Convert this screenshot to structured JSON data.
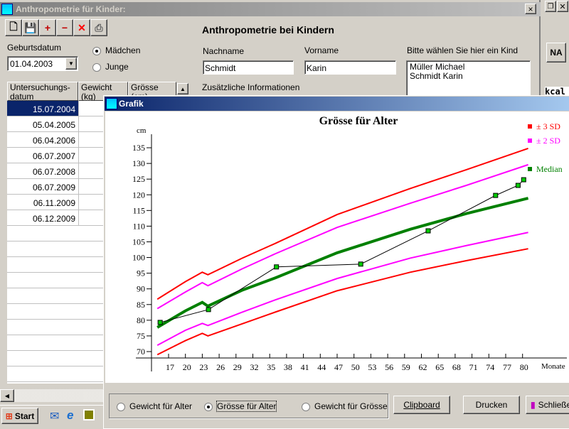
{
  "main_window": {
    "title": "Anthropometrie für Kinder:",
    "heading": "Anthropometrie bei Kindern",
    "close": "×",
    "toolbar": [
      {
        "icon": "new-icon",
        "glyph": "🗋"
      },
      {
        "icon": "save-icon",
        "glyph": "💾"
      },
      {
        "icon": "add-row-icon",
        "glyph": "+"
      },
      {
        "icon": "remove-row-icon",
        "glyph": "−"
      },
      {
        "icon": "delete-icon",
        "glyph": "✕"
      },
      {
        "icon": "print-icon",
        "glyph": "⎙"
      }
    ],
    "birthdate_label": "Geburtsdatum",
    "birthdate": "01.04.2003",
    "gender": {
      "options": [
        "Mädchen",
        "Junge"
      ],
      "selected": "Mädchen"
    },
    "lastname_label": "Nachname",
    "lastname": "Schmidt",
    "firstname_label": "Vorname",
    "firstname": "Karin",
    "info_label": "Zusätzliche Informationen",
    "child_list_label": "Bitte wählen Sie hier ein Kind",
    "children": [
      "Müller Michael",
      "Schmidt Karin"
    ],
    "table": {
      "headers": [
        "Untersuchungs-\ndatum",
        "Gewicht (kg)",
        "Grösse (cm)"
      ],
      "rows": [
        "15.07.2004",
        "05.04.2005",
        "06.04.2006",
        "06.07.2007",
        "06.07.2008",
        "06.07.2009",
        "06.11.2009",
        "06.12.2009"
      ],
      "selected": 0
    }
  },
  "back_window": {
    "na_button": "NA",
    "kcal": "kcal"
  },
  "taskbar": {
    "start": "Start"
  },
  "grafik_window": {
    "title": "Grafik",
    "options": [
      "Gewicht für Alter",
      "Grösse für Alter",
      "Gewicht für Grösse"
    ],
    "selected": "Grösse für Alter",
    "clipboard": "Clipboard",
    "print": "Drucken",
    "close": "Schließen"
  },
  "chart_data": {
    "type": "line",
    "title": "Grösse für Alter",
    "ylabel": "cm",
    "xlabel": "Monate",
    "xlim": [
      14,
      81
    ],
    "ylim": [
      68,
      138
    ],
    "xticks": [
      17,
      20,
      23,
      26,
      29,
      32,
      35,
      38,
      41,
      44,
      47,
      50,
      53,
      56,
      59,
      62,
      65,
      68,
      71,
      74,
      77,
      80
    ],
    "yticks": [
      70,
      75,
      80,
      85,
      90,
      95,
      100,
      105,
      110,
      115,
      120,
      125,
      130,
      135
    ],
    "legend": [
      {
        "name": "± 3 SD",
        "color": "#ff0000"
      },
      {
        "name": "± 2 SD",
        "color": "#ff00ff"
      },
      {
        "name": "Median",
        "color": "#008000"
      }
    ],
    "legend_position": "top-right",
    "curves": [
      {
        "name": "+3 SD",
        "color": "#ff0000",
        "x": [
          15,
          20,
          23,
          24,
          30,
          36,
          47,
          60,
          70,
          81
        ],
        "y": [
          86.7,
          92.3,
          95.3,
          94.5,
          99.7,
          104.5,
          113.7,
          122,
          128,
          134.8
        ]
      },
      {
        "name": "+2 SD",
        "color": "#ff00ff",
        "x": [
          15,
          20,
          23,
          24,
          30,
          36,
          47,
          60,
          70,
          81
        ],
        "y": [
          83.7,
          89,
          92,
          91,
          96.3,
          101.2,
          109.6,
          117.3,
          123,
          129.6
        ]
      },
      {
        "name": "Median",
        "color": "#008000",
        "x": [
          15,
          20,
          23,
          24,
          30,
          36,
          47,
          60,
          70,
          81
        ],
        "y": [
          77.7,
          83,
          85.7,
          84.5,
          89.5,
          93.5,
          101.5,
          109,
          114,
          118.9
        ]
      },
      {
        "name": "-2 SD",
        "color": "#ff00ff",
        "x": [
          15,
          20,
          23,
          24,
          30,
          36,
          47,
          60,
          70,
          81
        ],
        "y": [
          72,
          76.8,
          79,
          78.3,
          82.5,
          86.5,
          93.3,
          99.8,
          103.8,
          108
        ]
      },
      {
        "name": "-3 SD",
        "color": "#ff0000",
        "x": [
          15,
          20,
          23,
          24,
          30,
          36,
          47,
          60,
          70,
          81
        ],
        "y": [
          69,
          73.5,
          75.8,
          75,
          78.8,
          82.6,
          89.4,
          95.3,
          99,
          102.8
        ]
      }
    ],
    "measurements": {
      "color": "#00cc00",
      "x": [
        15.5,
        24.1,
        36.2,
        51.2,
        63.2,
        75.2,
        79.2,
        80.2
      ],
      "y": [
        79.3,
        83.4,
        97.0,
        97.9,
        108.5,
        119.8,
        123.0,
        124.8
      ]
    }
  }
}
